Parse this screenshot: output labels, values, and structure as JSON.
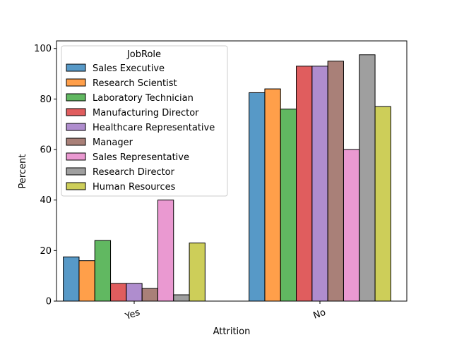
{
  "chart_data": {
    "type": "bar",
    "title": "",
    "xlabel": "Attrition",
    "ylabel": "Percent",
    "categories": [
      "Yes",
      "No"
    ],
    "ylim": [
      0,
      103
    ],
    "yticks": [
      0,
      20,
      40,
      60,
      80,
      100
    ],
    "grid": false,
    "legend": {
      "title": "JobRole",
      "placement": "top-left"
    },
    "series": [
      {
        "name": "Sales Executive",
        "color": "#1f77b4",
        "values": [
          17.5,
          82.5
        ]
      },
      {
        "name": "Research Scientist",
        "color": "#ff7f0e",
        "values": [
          16.0,
          84.0
        ]
      },
      {
        "name": "Laboratory Technician",
        "color": "#2ca02c",
        "values": [
          24.0,
          76.0
        ]
      },
      {
        "name": "Manufacturing Director",
        "color": "#d62728",
        "values": [
          7.0,
          93.0
        ]
      },
      {
        "name": "Healthcare Representative",
        "color": "#9467bd",
        "values": [
          7.0,
          93.0
        ]
      },
      {
        "name": "Manager",
        "color": "#8c564b",
        "values": [
          5.0,
          95.0
        ]
      },
      {
        "name": "Sales Representative",
        "color": "#e377c2",
        "values": [
          40.0,
          60.0
        ]
      },
      {
        "name": "Research Director",
        "color": "#7f7f7f",
        "values": [
          2.5,
          97.5
        ]
      },
      {
        "name": "Human Resources",
        "color": "#bcbd22",
        "values": [
          23.0,
          77.0
        ]
      }
    ]
  }
}
